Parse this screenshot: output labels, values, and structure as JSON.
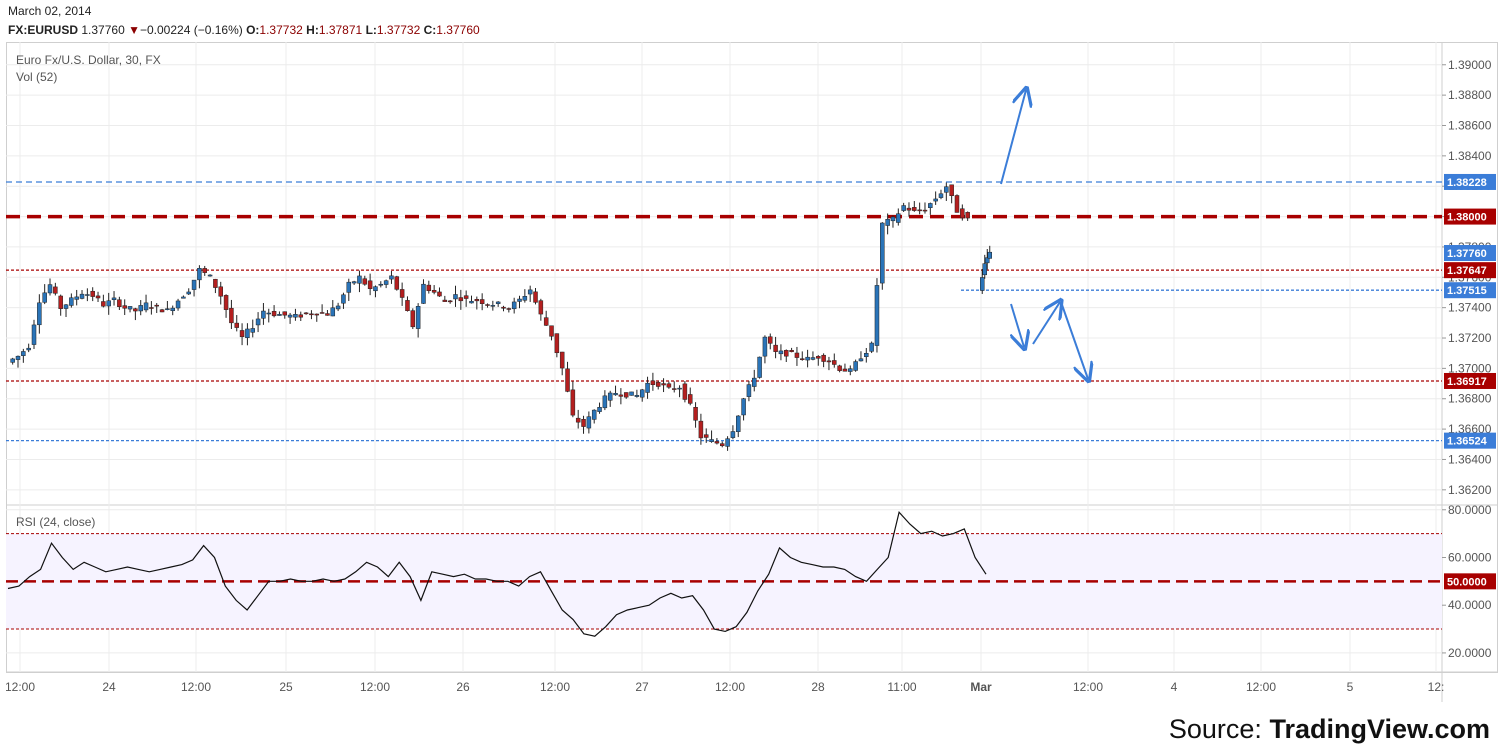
{
  "header": {
    "date": "March 02, 2014",
    "symbol": "FX:EURUSD",
    "last": "1.37760",
    "change": "−0.00224 (−0.16%)",
    "open_label": "O:",
    "open": "1.37732",
    "high_label": "H:",
    "high": "1.37871",
    "low_label": "L:",
    "low": "1.37732",
    "close_label": "C:",
    "close": "1.37760"
  },
  "source": {
    "prefix": "Source:",
    "brand": "TradingView.com"
  },
  "colors": {
    "up": "#2a74b8",
    "down": "#b41f1f",
    "blue_level": "#3b7dd8",
    "red_level": "#a80000",
    "rsi_band": "#f6f3ff",
    "grid": "#ececec"
  },
  "chart_data": [
    {
      "type": "candlestick",
      "title": "Euro Fx/U.S. Dollar, 30, FX",
      "subtitle": "Vol (52)",
      "ylim": [
        1.361,
        1.3915
      ],
      "y_ticks": [
        "1.39000",
        "1.38800",
        "1.38600",
        "1.38400",
        "1.38200",
        "1.38000",
        "1.37800",
        "1.37600",
        "1.37400",
        "1.37200",
        "1.37000",
        "1.36800",
        "1.36600",
        "1.36400",
        "1.36200"
      ],
      "x_ticks": [
        "12:00",
        "24",
        "12:00",
        "25",
        "12:00",
        "26",
        "12:00",
        "27",
        "12:00",
        "28",
        "11:00",
        "Mar",
        "12:00",
        "4",
        "12:00",
        "5",
        "12:"
      ],
      "levels": [
        {
          "label": "1.38228",
          "value": 1.38228,
          "style": "blue-dashed"
        },
        {
          "label": "1.38000",
          "value": 1.38,
          "style": "red-thick-dashed"
        },
        {
          "label": "1.37647",
          "value": 1.37647,
          "style": "red-dotted"
        },
        {
          "label": "1.37515",
          "value": 1.37515,
          "style": "blue-dotted"
        },
        {
          "label": "1.36917",
          "value": 1.36917,
          "style": "red-dotted"
        },
        {
          "label": "1.36524",
          "value": 1.36524,
          "style": "blue-dotted"
        }
      ],
      "last_price_label": "1.37760",
      "last_price": 1.3776,
      "price_path": [
        {
          "seg": 0,
          "v": [
            1.3704,
            1.3708,
            1.3715,
            1.3745,
            1.3755,
            1.374,
            1.3745,
            1.375,
            1.3748,
            1.3742,
            1.3745,
            1.374,
            1.3738,
            1.3742,
            1.374,
            1.3738,
            1.3745,
            1.3752,
            1.3765,
            1.376,
            1.3748,
            1.373,
            1.372,
            1.3728,
            1.3738,
            1.3736,
            1.3735,
            1.3734,
            1.3736,
            1.3737,
            1.3736,
            1.3742,
            1.3755,
            1.376,
            1.3752,
            1.3755,
            1.376,
            1.3745,
            1.3728,
            1.3755,
            1.375,
            1.3744,
            1.3748,
            1.3745,
            1.3745,
            1.3743,
            1.3742,
            1.374,
            1.3745,
            1.3752,
            1.3735,
            1.3722,
            1.37,
            1.3668,
            1.3662,
            1.3672,
            1.368,
            1.3684,
            1.3683,
            1.3682,
            1.369,
            1.369,
            1.3686,
            1.3688,
            1.3675,
            1.3655,
            1.3652,
            1.365,
            1.366,
            1.368,
            1.3695,
            1.372,
            1.371,
            1.371,
            1.3708,
            1.3706,
            1.3708,
            1.3705,
            1.37,
            1.3698,
            1.3708,
            1.3715,
            1.3795,
            1.3798,
            1.3807,
            1.3803,
            1.3805,
            1.3812,
            1.382,
            1.3804,
            1.3798
          ]
        },
        {
          "seg": 1,
          "v": [
            1.3752,
            1.377,
            1.3776
          ]
        }
      ],
      "annotations": [
        {
          "type": "arrow",
          "color": "#3b7dd8",
          "desc": "breakout up"
        },
        {
          "type": "arrow-zigzag",
          "color": "#3b7dd8",
          "desc": "pullback then drop"
        }
      ]
    },
    {
      "type": "line",
      "title": "RSI (24, close)",
      "ylim": [
        12,
        82
      ],
      "y_ticks": [
        "80.0000",
        "60.0000",
        "40.0000",
        "20.0000"
      ],
      "band": [
        30,
        70
      ],
      "midline_label": "50.0000",
      "midline": 50,
      "values": [
        47,
        48,
        52,
        55,
        66,
        60,
        55,
        58,
        56,
        54,
        55,
        56,
        55,
        54,
        55,
        56,
        57,
        59,
        65,
        60,
        48,
        42,
        38,
        44,
        50,
        50,
        51,
        50,
        50,
        51,
        50,
        51,
        54,
        58,
        56,
        52,
        58,
        52,
        42,
        54,
        53,
        52,
        53,
        51,
        51,
        50,
        50,
        48,
        52,
        54,
        46,
        38,
        34,
        28,
        27,
        31,
        36,
        38,
        39,
        40,
        43,
        45,
        43,
        44,
        38,
        30,
        29,
        31,
        37,
        46,
        53,
        64,
        60,
        58,
        57,
        56,
        56,
        55,
        52,
        50,
        55,
        60,
        79,
        74,
        70,
        71,
        69,
        70,
        72,
        60,
        53
      ]
    }
  ]
}
